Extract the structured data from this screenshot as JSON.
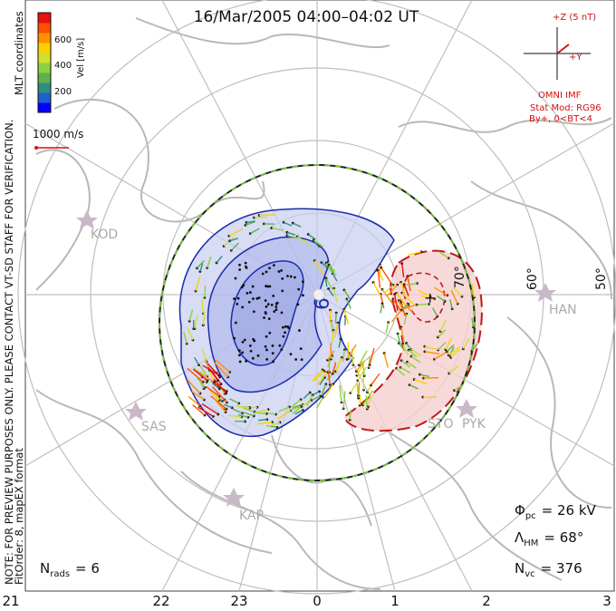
{
  "title": "16/Mar/2005 04:00–04:02 UT",
  "side_note": {
    "line1": "NOTE: FOR PREVIEW PURPOSES ONLY. PLEASE CONTACT VT-SD STAFF FOR VERIFICATION.",
    "line2": "FitOrder: 8, mapEX format"
  },
  "coordinates_label": "MLT coordinates",
  "colorbar": {
    "title": "Vel [m/s]",
    "ticks": [
      "600",
      "400",
      "200"
    ],
    "colors": [
      "#0000ff",
      "#1f5fd0",
      "#2f8f7f",
      "#5fb050",
      "#8fd040",
      "#d0e030",
      "#ffd000",
      "#ff9000",
      "#ff5000",
      "#e81010"
    ]
  },
  "scale_vector": {
    "label": "1000 m/s",
    "color": "#d01010"
  },
  "imf": {
    "z_label": "+Z (5 nT)",
    "y_label": "+Y",
    "source": "OMNI IMF",
    "model": "Stat Mod: RG96",
    "condition": "By+, 0<BT<4",
    "color": "#d01010"
  },
  "lat_labels": [
    "60°",
    "50°",
    "70°"
  ],
  "potential_labels": {
    "min": "-9",
    "max": "+"
  },
  "stations": [
    "KOD",
    "HAN",
    "SAS",
    "STO",
    "PYK",
    "KAP"
  ],
  "stats": {
    "phi_pc": {
      "symbol": "Φ",
      "sub": "pc",
      "value": "= 26 kV"
    },
    "lambda_hm": {
      "symbol": "Λ",
      "sub": "HM",
      "value": "= 68°"
    },
    "n_vc": {
      "symbol": "N",
      "sub": "vc",
      "value": "= 376"
    },
    "n_rads": {
      "symbol": "N",
      "sub": "rads",
      "value": "= 6"
    }
  },
  "mlt_axis": [
    "21",
    "22",
    "23",
    "0",
    "1",
    "2",
    "3"
  ],
  "colors": {
    "negative_cell": "#c8cdf0",
    "positive_cell": "#f5d0d0",
    "negative_contour": "#1a2bb0",
    "positive_contour": "#c01818",
    "grid": "#bfbfbf",
    "coast": "#b8b8b8"
  }
}
